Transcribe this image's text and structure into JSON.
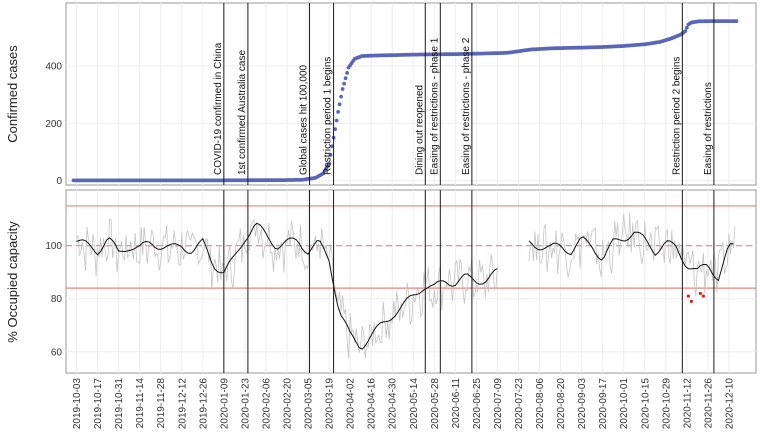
{
  "chart_data": [
    {
      "type": "scatter",
      "ylabel": "Confirmed cases",
      "yticks": [
        0,
        200,
        400
      ],
      "ylim": [
        -15,
        620
      ],
      "grid": true,
      "point_color": "#5a67b8",
      "series": [
        {
          "x": [
            "2019-10-01",
            "2019-12-31",
            "2020-02-15",
            "2020-03-01",
            "2020-03-10",
            "2020-03-15",
            "2020-03-19",
            "2020-03-22",
            "2020-03-25",
            "2020-03-28",
            "2020-04-01",
            "2020-04-05",
            "2020-04-10",
            "2020-04-20",
            "2020-05-01",
            "2020-05-15",
            "2020-06-01",
            "2020-06-15",
            "2020-07-01",
            "2020-07-15",
            "2020-08-01",
            "2020-08-15",
            "2020-09-01",
            "2020-09-15",
            "2020-10-01",
            "2020-10-15",
            "2020-10-25",
            "2020-11-01",
            "2020-11-08",
            "2020-11-11",
            "2020-11-13",
            "2020-11-15",
            "2020-11-20",
            "2020-12-01",
            "2020-12-15"
          ],
          "y": [
            1,
            1,
            2,
            3,
            10,
            25,
            60,
            150,
            240,
            320,
            395,
            425,
            435,
            437,
            438,
            440,
            441,
            442,
            444,
            446,
            458,
            462,
            464,
            466,
            470,
            476,
            484,
            495,
            510,
            522,
            545,
            552,
            556,
            557,
            557
          ]
        }
      ]
    },
    {
      "type": "line",
      "ylabel": "% Occupied capacity",
      "yticks": [
        60,
        80,
        100
      ],
      "ylim": [
        52,
        121
      ],
      "grid": true,
      "reference_lines": {
        "upper": 115,
        "center": 100,
        "lower": 84
      },
      "reference_color": "#e8847a",
      "raw_color": "#c4c4c4",
      "smooth_color": "#111111",
      "outlier_color": "#e02020",
      "series": [
        {
          "name": "",
          "x": [
            "2019-10-03",
            "2019-10-10",
            "2019-10-17",
            "2019-10-24",
            "2019-10-31",
            "2019-11-07",
            "2019-11-14",
            "2019-11-21",
            "2019-11-28",
            "2019-12-05",
            "2019-12-12",
            "2019-12-19",
            "2019-12-26",
            "2020-01-02",
            "2020-01-09",
            "2020-01-16",
            "2020-01-23",
            "2020-01-30",
            "2020-02-06",
            "2020-02-13",
            "2020-02-20",
            "2020-02-27",
            "2020-03-05",
            "2020-03-12",
            "2020-03-19",
            "2020-03-26",
            "2020-04-02",
            "2020-04-09",
            "2020-04-16",
            "2020-04-23",
            "2020-04-30",
            "2020-05-07",
            "2020-05-14",
            "2020-05-21",
            "2020-05-28",
            "2020-06-04",
            "2020-06-11",
            "2020-06-18",
            "2020-06-25",
            "2020-07-02",
            "2020-07-09"
          ],
          "y": [
            102,
            100,
            98,
            103,
            97,
            100,
            99,
            101,
            100,
            99,
            100,
            98,
            101,
            93,
            90,
            95,
            103,
            108,
            104,
            100,
            101,
            102,
            98,
            101,
            95,
            75,
            66,
            62,
            66,
            70,
            74,
            77,
            81,
            85,
            84,
            87,
            86,
            88,
            87,
            87,
            90
          ]
        },
        {
          "name": "",
          "x": [
            "2020-07-30",
            "2020-08-06",
            "2020-08-13",
            "2020-08-20",
            "2020-08-27",
            "2020-09-03",
            "2020-09-10",
            "2020-09-17",
            "2020-09-24",
            "2020-10-01",
            "2020-10-08",
            "2020-10-15",
            "2020-10-22",
            "2020-10-29",
            "2020-11-05",
            "2020-11-12",
            "2020-11-19",
            "2020-11-26",
            "2020-12-03",
            "2020-12-10",
            "2020-12-14"
          ],
          "y": [
            101,
            100,
            99,
            100,
            98,
            102,
            100,
            95,
            101,
            103,
            105,
            102,
            98,
            101,
            99,
            93,
            90,
            93,
            88,
            99,
            100
          ]
        }
      ],
      "outliers": {
        "x": [
          "2020-11-13",
          "2020-11-15",
          "2020-11-21",
          "2020-11-23"
        ],
        "y": [
          81,
          79,
          82,
          81
        ]
      }
    }
  ],
  "x_axis": {
    "ticks": [
      "2019-10-03",
      "2019-10-17",
      "2019-10-31",
      "2019-11-14",
      "2019-11-28",
      "2019-12-12",
      "2019-12-26",
      "2020-01-09",
      "2020-01-23",
      "2020-02-06",
      "2020-02-20",
      "2020-03-05",
      "2020-03-19",
      "2020-04-02",
      "2020-04-16",
      "2020-04-30",
      "2020-05-14",
      "2020-05-28",
      "2020-06-11",
      "2020-06-25",
      "2020-07-09",
      "2020-07-23",
      "2020-08-06",
      "2020-08-20",
      "2020-09-03",
      "2020-09-17",
      "2020-10-01",
      "2020-10-15",
      "2020-10-29",
      "2020-11-12",
      "2020-11-26",
      "2020-12-10"
    ],
    "range": [
      "2019-09-26",
      "2020-12-28"
    ]
  },
  "events": [
    {
      "date": "2020-01-09",
      "label": "COVID-19 confirmed in China"
    },
    {
      "date": "2020-01-25",
      "label": "1st confirmed Australia case"
    },
    {
      "date": "2020-03-06",
      "label": "Global cases hit 100,000"
    },
    {
      "date": "2020-03-22",
      "label": "Restriction period 1 begins"
    },
    {
      "date": "2020-05-22",
      "label": "Dining out reopened"
    },
    {
      "date": "2020-06-01",
      "label": "Easing of restrictions - phase 1"
    },
    {
      "date": "2020-06-22",
      "label": "Easing of restrictions - phase 2"
    },
    {
      "date": "2020-11-09",
      "label": "Restriction period 2 begins"
    },
    {
      "date": "2020-11-30",
      "label": "Easing of restrictions"
    }
  ]
}
